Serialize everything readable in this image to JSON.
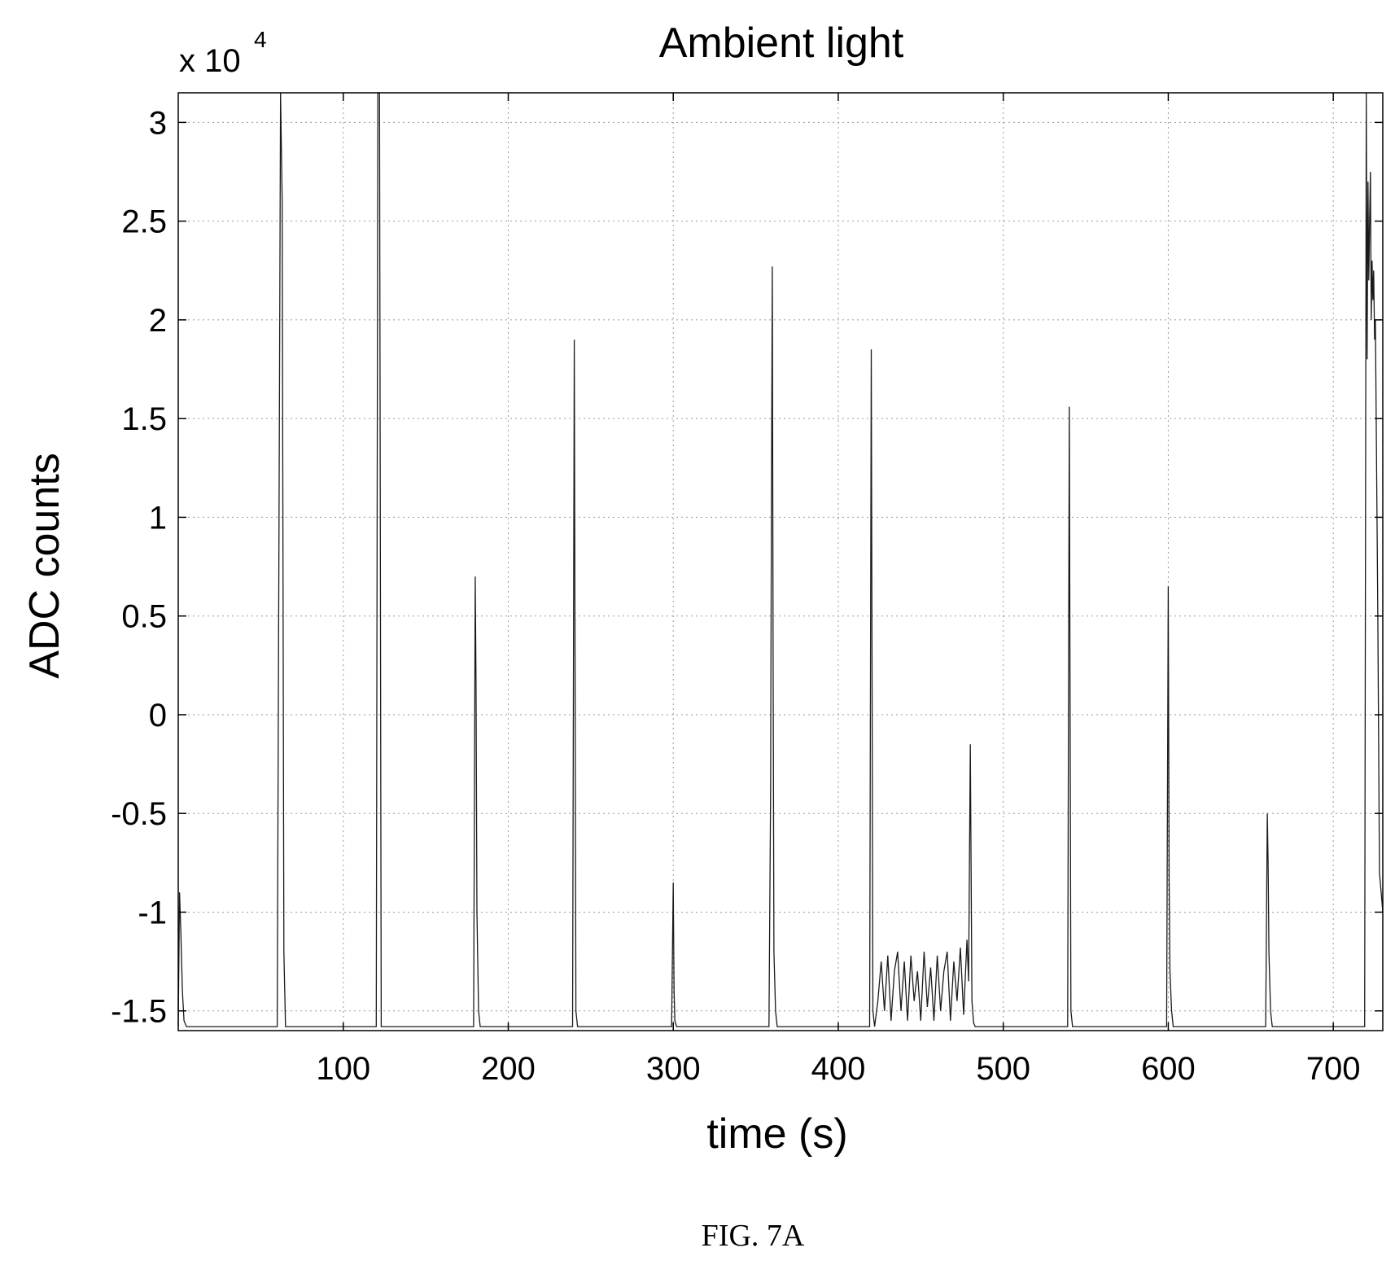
{
  "chart_data": {
    "type": "line",
    "title": "Ambient light",
    "xlabel": "time (s)",
    "ylabel": "ADC counts",
    "y_multiplier": {
      "base": "x 10",
      "exponent": "4"
    },
    "xlim": [
      0,
      730
    ],
    "ylim": [
      -1.6,
      3.15
    ],
    "xticks": [
      100,
      200,
      300,
      400,
      500,
      600,
      700
    ],
    "yticks": [
      -1.5,
      -1,
      -0.5,
      0,
      0.5,
      1,
      1.5,
      2,
      2.5,
      3
    ],
    "xtick_labels": [
      "100",
      "200",
      "300",
      "400",
      "500",
      "600",
      "700"
    ],
    "ytick_labels": [
      "-1.5",
      "-1",
      "-0.5",
      "0",
      "0.5",
      "1",
      "1.5",
      "2",
      "2.5",
      "3"
    ],
    "grid": true,
    "line_color": "#1a1a1a",
    "series": [
      {
        "x": [
          0,
          0.8,
          1.6,
          2.5,
          3.5,
          5,
          60,
          62,
          63,
          64,
          65,
          120,
          121,
          122,
          123,
          124,
          179,
          180,
          180.5,
          181,
          182,
          183,
          239,
          240,
          241,
          242,
          299,
          300,
          300.5,
          301,
          302,
          358,
          359,
          359.5,
          360,
          360.5,
          361,
          362,
          363,
          419,
          420,
          421,
          422,
          424,
          426,
          428,
          430,
          432,
          434,
          436,
          438,
          440,
          442,
          444,
          446,
          448,
          450,
          452,
          454,
          456,
          458,
          460,
          462,
          464,
          466,
          468,
          470,
          472,
          474,
          476,
          478,
          479,
          480,
          481,
          482,
          483,
          539,
          540,
          541,
          542,
          599,
          600,
          600.5,
          601,
          602,
          603,
          659,
          660,
          660.5,
          661,
          662,
          663,
          719,
          720,
          720.5,
          721,
          721.5,
          722,
          722.5,
          723,
          723.5,
          724,
          724.5,
          725,
          725.5,
          726,
          727,
          728,
          729,
          730
        ],
        "y": [
          -1.58,
          -0.9,
          -1.1,
          -1.4,
          -1.55,
          -1.58,
          -1.58,
          3.15,
          2.6,
          -1.2,
          -1.58,
          -1.58,
          3.15,
          3.15,
          -1.58,
          -1.58,
          -1.58,
          0.7,
          0.15,
          -1.0,
          -1.5,
          -1.58,
          -1.58,
          1.9,
          -1.5,
          -1.58,
          -1.58,
          -0.85,
          -1.4,
          -1.55,
          -1.58,
          -1.58,
          -0.4,
          1.0,
          2.27,
          0.3,
          -1.2,
          -1.5,
          -1.58,
          -1.58,
          1.85,
          -1.5,
          -1.58,
          -1.45,
          -1.25,
          -1.5,
          -1.22,
          -1.55,
          -1.3,
          -1.2,
          -1.5,
          -1.25,
          -1.55,
          -1.22,
          -1.45,
          -1.3,
          -1.55,
          -1.2,
          -1.48,
          -1.28,
          -1.55,
          -1.22,
          -1.5,
          -1.3,
          -1.2,
          -1.55,
          -1.25,
          -1.45,
          -1.18,
          -1.52,
          -1.14,
          -1.35,
          -0.15,
          -1.45,
          -1.56,
          -1.58,
          -1.58,
          1.56,
          -1.5,
          -1.58,
          -1.58,
          0.65,
          -0.85,
          -1.3,
          -1.5,
          -1.58,
          -1.58,
          -0.5,
          -0.75,
          -1.2,
          -1.5,
          -1.58,
          -1.58,
          3.15,
          1.8,
          2.7,
          2.2,
          2.5,
          2.75,
          2.0,
          2.3,
          2.1,
          2.25,
          1.9,
          2.0,
          1.5,
          0.5,
          -0.8,
          -0.9,
          -1.0
        ]
      }
    ]
  },
  "caption": "FIG. 7A"
}
